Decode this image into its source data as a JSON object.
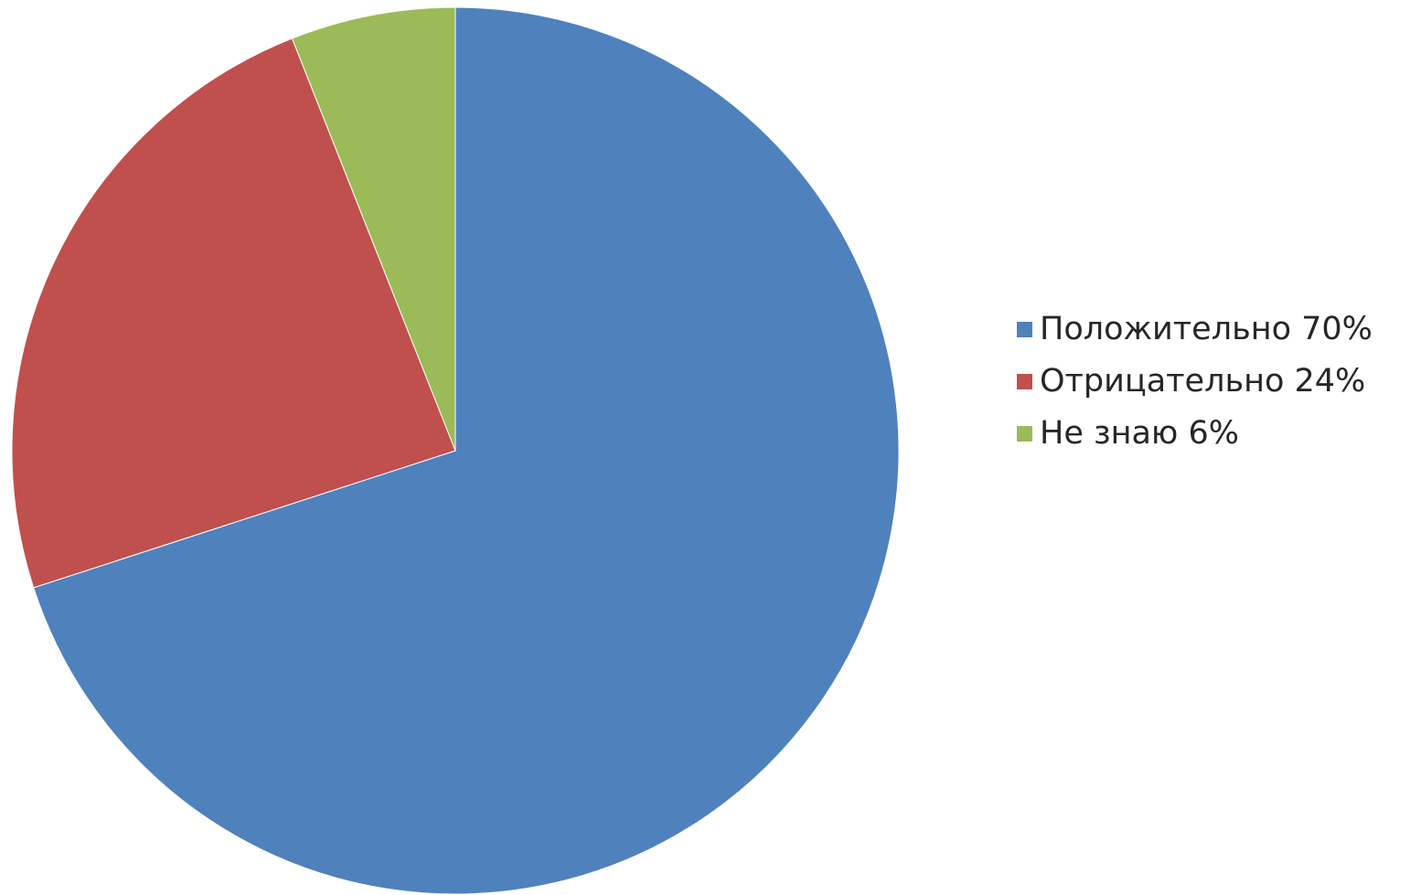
{
  "chart_data": {
    "type": "pie",
    "title": "",
    "legend_position": "right",
    "start_angle": "12 o'clock, clockwise",
    "slices": [
      {
        "label": "Положительно 70%",
        "value": 70,
        "color": "#4f81bd"
      },
      {
        "label": "Отрицательно 24%",
        "value": 24,
        "color": "#c0504d"
      },
      {
        "label": "Не знаю 6%",
        "value": 6,
        "color": "#9bbb59"
      }
    ]
  }
}
